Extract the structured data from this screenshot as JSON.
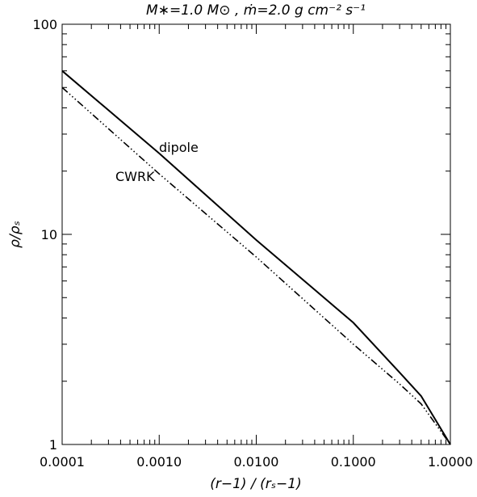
{
  "chart_data": {
    "type": "line",
    "title": "M∗=1.0 M⊙ ,  ṁ=2.0 g cm⁻² s⁻¹",
    "x_label": "(r−1) / (rₛ−1)",
    "y_label": "ρ/ρₛ",
    "x": [
      0.0001,
      0.001,
      0.01,
      0.1,
      0.3,
      0.5,
      1
    ],
    "series": [
      {
        "name": "dipole",
        "color": "#000000",
        "line_style": "solid",
        "values": [
          60,
          24.3,
          9.4,
          3.8,
          2.2,
          1.7,
          1
        ]
      },
      {
        "name": "CWRK",
        "color": "#000000",
        "line_style": "dash-dot-dot-dot",
        "values": [
          50,
          19.4,
          7.8,
          3.0,
          1.94,
          1.56,
          1
        ]
      }
    ],
    "xlim": [
      0.0001,
      1
    ],
    "ylim": [
      1,
      100
    ],
    "xticks": [
      {
        "value": 0.0001,
        "label": "0.0001"
      },
      {
        "value": 0.001,
        "label": "0.0010"
      },
      {
        "value": 0.01,
        "label": "0.0100"
      },
      {
        "value": 0.1,
        "label": "0.1000"
      },
      {
        "value": 1,
        "label": "1.0000"
      }
    ],
    "yticks": [
      1,
      10,
      100
    ],
    "log_x": true,
    "log_y": true
  }
}
